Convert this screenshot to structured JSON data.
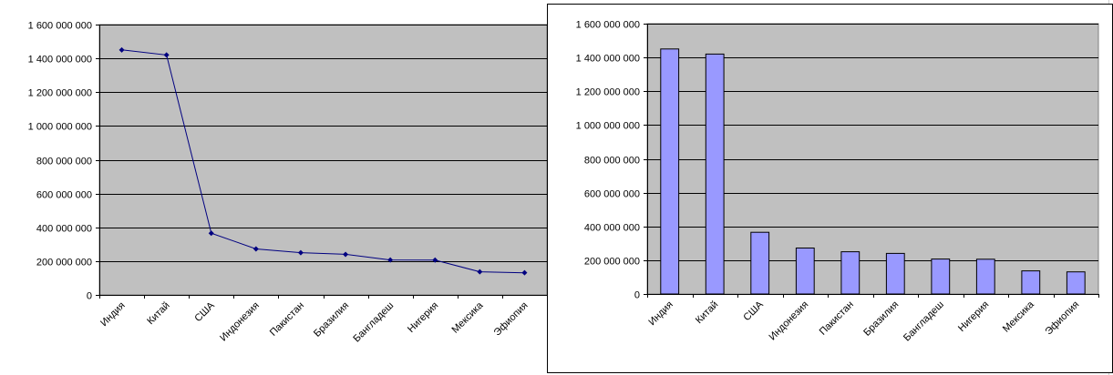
{
  "colors": {
    "plot_area": "#c0c0c0",
    "gridline": "#000000",
    "line_series": "#000080",
    "bar_fill": "#9999ff",
    "bar_stroke": "#000000"
  },
  "chart_data": [
    {
      "type": "line",
      "title": "",
      "xlabel": "",
      "ylabel": "",
      "categories": [
        "Индия",
        "Китай",
        "США",
        "Индонезия",
        "Пакистан",
        "Бразилия",
        "Бангладеш",
        "Нигерия",
        "Мексика",
        "Эфиопия"
      ],
      "values": [
        1450000000,
        1420000000,
        365000000,
        272000000,
        250000000,
        240000000,
        207000000,
        206000000,
        137000000,
        131000000
      ],
      "ylim": [
        0,
        1600000000
      ],
      "yticks": [
        0,
        200000000,
        400000000,
        600000000,
        800000000,
        1000000000,
        1200000000,
        1400000000,
        1600000000
      ],
      "ytick_labels": [
        "0",
        "200 000 000",
        "400 000 000",
        "600 000 000",
        "800 000 000",
        "1 000 000 000",
        "1 200 000 000",
        "1 400 000 000",
        "1 600 000 000"
      ],
      "grid": true,
      "legend": "none",
      "marker": "diamond"
    },
    {
      "type": "bar",
      "title": "",
      "xlabel": "",
      "ylabel": "",
      "categories": [
        "Индия",
        "Китай",
        "США",
        "Индонезия",
        "Пакистан",
        "Бразилия",
        "Бангладеш",
        "Нигерия",
        "Мексика",
        "Эфиопия"
      ],
      "values": [
        1450000000,
        1420000000,
        365000000,
        272000000,
        250000000,
        240000000,
        207000000,
        206000000,
        137000000,
        131000000
      ],
      "ylim": [
        0,
        1600000000
      ],
      "yticks": [
        0,
        200000000,
        400000000,
        600000000,
        800000000,
        1000000000,
        1200000000,
        1400000000,
        1600000000
      ],
      "ytick_labels": [
        "0",
        "200 000 000",
        "400 000 000",
        "600 000 000",
        "800 000 000",
        "1 000 000 000",
        "1 200 000 000",
        "1 400 000 000",
        "1 600 000 000"
      ],
      "grid": true,
      "legend": "none"
    }
  ]
}
